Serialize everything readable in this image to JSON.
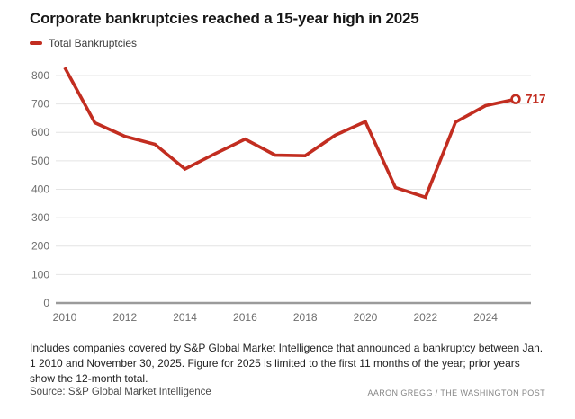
{
  "header": {
    "title": "Corporate bankruptcies reached a 15-year high in 2025"
  },
  "legend": {
    "label": "Total Bankruptcies"
  },
  "chart_data": {
    "type": "line",
    "title": "Corporate bankruptcies reached a 15-year high in 2025",
    "xlabel": "",
    "ylabel": "",
    "x": [
      2010,
      2011,
      2012,
      2013,
      2014,
      2015,
      2016,
      2017,
      2018,
      2019,
      2020,
      2021,
      2022,
      2023,
      2024,
      2025
    ],
    "series": [
      {
        "name": "Total Bankruptcies",
        "color": "#c22d20",
        "values": [
          828,
          634,
          586,
          558,
          471,
          525,
          576,
          520,
          518,
          590,
          638,
          406,
          372,
          636,
          694,
          717
        ]
      }
    ],
    "end_label": "717",
    "end_marker": "open-circle",
    "xticks": [
      2010,
      2012,
      2014,
      2016,
      2018,
      2020,
      2022,
      2024
    ],
    "yticks": [
      0,
      100,
      200,
      300,
      400,
      500,
      600,
      700,
      800
    ],
    "ylim": [
      0,
      850
    ],
    "grid": true,
    "grid_color": "#e4e4e4",
    "axis_color": "#9b9b9b",
    "tick_color": "#6e6e6e",
    "legend_position": "top-left"
  },
  "notes": {
    "text": "Includes companies covered by S&P Global Market Intelligence that announced a bankruptcy between Jan. 1 2010 and November 30, 2025. Figure for 2025 is limited to the first 11 months of the year; prior years show the 12-month total."
  },
  "footer": {
    "source": "Source: S&P Global Market Intelligence",
    "byline": "AARON GREGG / THE WASHINGTON POST"
  }
}
